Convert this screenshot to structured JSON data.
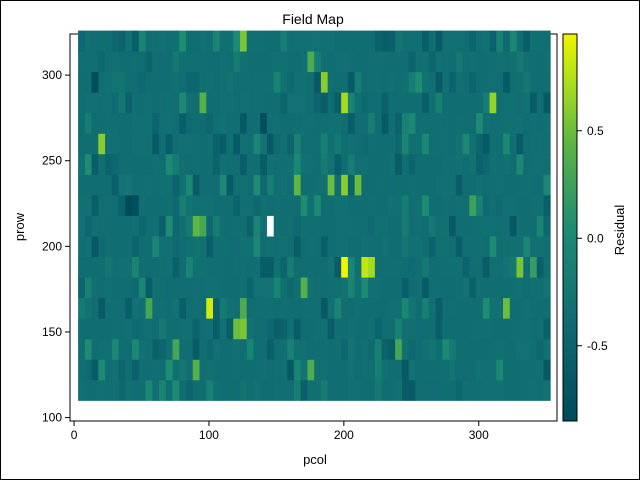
{
  "chart_data": {
    "type": "heatmap",
    "title": "Field Map",
    "xlabel": "pcol",
    "ylabel": "prow",
    "colorbar_label": "Residual",
    "xlim": [
      -3,
      358
    ],
    "ylim": [
      98,
      324
    ],
    "xticks": [
      0,
      100,
      200,
      300
    ],
    "yticks": [
      100,
      150,
      200,
      250,
      300
    ],
    "colorbar_range": [
      -0.85,
      0.95
    ],
    "colorbar_ticks": [
      -0.5,
      0.0,
      0.5
    ],
    "colorbar_tick_labels": [
      "-0.5",
      "0.0",
      "0.5"
    ],
    "cell_width": 5,
    "cell_height": 12,
    "col_start": 3,
    "row_start": 110,
    "n_cols": 70,
    "n_rows": 18,
    "base_value": -0.35,
    "missing_cells": [
      [
        141,
        206
      ]
    ],
    "highlighted_cells": [
      {
        "pcol": 14,
        "prow": 290,
        "value": -0.82
      },
      {
        "pcol": 18,
        "prow": 254,
        "value": 0.6
      },
      {
        "pcol": 40,
        "prow": 218,
        "value": -0.85
      },
      {
        "pcol": 45,
        "prow": 218,
        "value": -0.8
      },
      {
        "pcol": 98,
        "prow": 158,
        "value": 0.85
      },
      {
        "pcol": 121,
        "prow": 314,
        "value": 0.55
      },
      {
        "pcol": 136,
        "prow": 266,
        "value": -0.8
      },
      {
        "pcol": 175,
        "prow": 302,
        "value": 0.35
      },
      {
        "pcol": 185,
        "prow": 290,
        "value": 0.6
      },
      {
        "pcol": 198,
        "prow": 278,
        "value": 0.7
      },
      {
        "pcol": 188,
        "prow": 230,
        "value": 0.5
      },
      {
        "pcol": 198,
        "prow": 230,
        "value": 0.6
      },
      {
        "pcol": 208,
        "prow": 230,
        "value": 0.5
      },
      {
        "pcol": 198,
        "prow": 182,
        "value": 0.95
      },
      {
        "pcol": 211,
        "prow": 182,
        "value": 0.8
      },
      {
        "pcol": 216,
        "prow": 182,
        "value": 0.7
      },
      {
        "pcol": 88,
        "prow": 206,
        "value": 0.45
      },
      {
        "pcol": 93,
        "prow": 206,
        "value": 0.3
      },
      {
        "pcol": 116,
        "prow": 146,
        "value": 0.5
      },
      {
        "pcol": 121,
        "prow": 146,
        "value": 0.55
      },
      {
        "pcol": 92,
        "prow": 278,
        "value": 0.4
      },
      {
        "pcol": 307,
        "prow": 278,
        "value": 0.65
      },
      {
        "pcol": 326,
        "prow": 182,
        "value": 0.55
      },
      {
        "pcol": 317,
        "prow": 158,
        "value": 0.5
      },
      {
        "pcol": 295,
        "prow": 218,
        "value": 0.25
      },
      {
        "pcol": 163,
        "prow": 230,
        "value": 0.45
      },
      {
        "pcol": 166,
        "prow": 170,
        "value": 0.4
      },
      {
        "pcol": 125,
        "prow": 158,
        "value": 0.35
      },
      {
        "pcol": 73,
        "prow": 134,
        "value": 0.3
      },
      {
        "pcol": 53,
        "prow": 158,
        "value": 0.3
      },
      {
        "pcol": 88,
        "prow": 122,
        "value": 0.4
      },
      {
        "pcol": 173,
        "prow": 122,
        "value": 0.35
      },
      {
        "pcol": 240,
        "prow": 134,
        "value": 0.3
      },
      {
        "pcol": 340,
        "prow": 182,
        "value": 0.2
      },
      {
        "pcol": 348,
        "prow": 278,
        "value": -0.65
      },
      {
        "pcol": 258,
        "prow": 278,
        "value": -0.55
      },
      {
        "pcol": 302,
        "prow": 182,
        "value": -0.6
      },
      {
        "pcol": 283,
        "prow": 230,
        "value": -0.6
      },
      {
        "pcol": 163,
        "prow": 146,
        "value": -0.6
      },
      {
        "pcol": 241,
        "prow": 170,
        "value": -0.55
      },
      {
        "pcol": 221,
        "prow": 146,
        "value": -0.5
      },
      {
        "pcol": 30,
        "prow": 230,
        "value": -0.55
      },
      {
        "pcol": 10,
        "prow": 206,
        "value": -0.45
      },
      {
        "pcol": 350,
        "prow": 218,
        "value": -0.55
      },
      {
        "pcol": 55,
        "prow": 302,
        "value": -0.5
      },
      {
        "pcol": 145,
        "prow": 182,
        "value": -0.6
      }
    ]
  }
}
